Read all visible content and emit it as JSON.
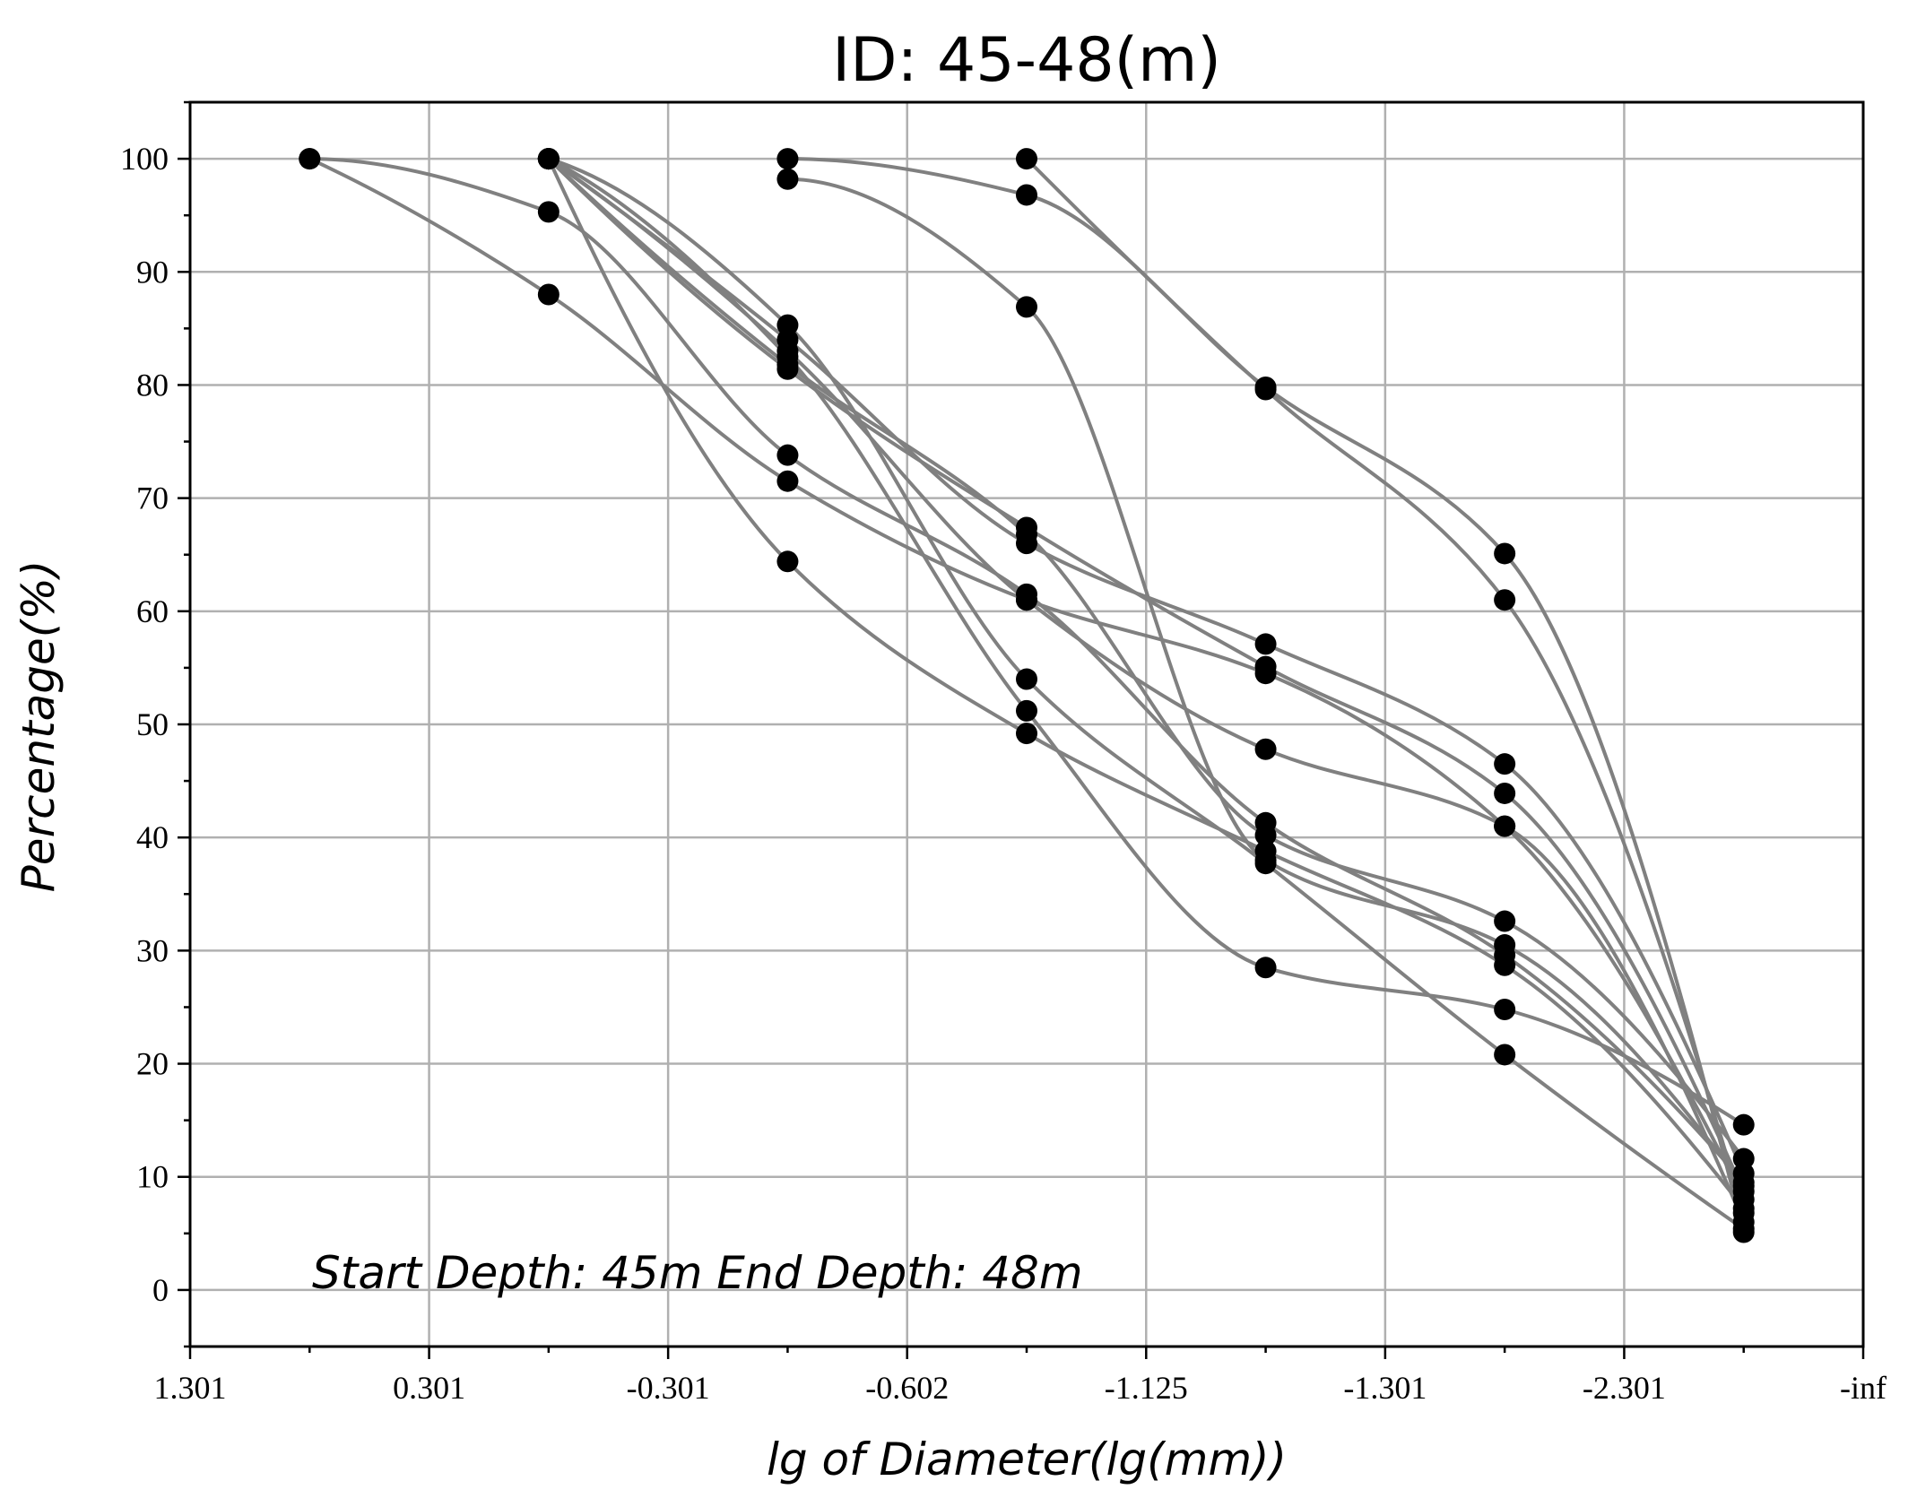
{
  "chart_data": {
    "type": "line",
    "title": "ID: 45-48(m)",
    "xlabel": "lg of Diameter(lg(mm))",
    "ylabel": "Percentage(%)",
    "annotation": "Start Depth: 45m End Depth: 48m",
    "x_tick_labels": [
      "1.301",
      "0.301",
      "-0.301",
      "-0.602",
      "-1.125",
      "-1.301",
      "-2.301",
      "-inf"
    ],
    "x_point_positions": [
      0.5,
      1.5,
      2.5,
      3.5,
      4.5,
      5.5,
      6.5
    ],
    "y_ticks": [
      0,
      10,
      20,
      30,
      40,
      50,
      60,
      70,
      80,
      90,
      100
    ],
    "xlim": [
      0,
      7
    ],
    "ylim": [
      -5,
      105
    ],
    "grid": true,
    "line_color": "#808080",
    "marker_color": "#000000",
    "series": [
      {
        "x": [
          0.5,
          1.5,
          2.5,
          3.5,
          4.5,
          5.5,
          6.5
        ],
        "values": [
          100,
          88,
          71.5,
          61,
          54.5,
          41,
          8
        ]
      },
      {
        "x": [
          0.5,
          1.5,
          2.5,
          3.5,
          4.5,
          5.5,
          6.5
        ],
        "values": [
          100,
          95.3,
          73.8,
          61.5,
          41.3,
          29.6,
          9.5
        ]
      },
      {
        "x": [
          1.5,
          2.5,
          3.5,
          4.5,
          5.5,
          6.5
        ],
        "values": [
          100,
          64.4,
          49.2,
          38.8,
          28.7,
          7.2
        ]
      },
      {
        "x": [
          1.5,
          2.5,
          3.5,
          4.5,
          5.5,
          6.5
        ],
        "values": [
          100,
          82.5,
          51.2,
          28.5,
          24.8,
          14.6
        ]
      },
      {
        "x": [
          1.5,
          2.5,
          3.5,
          4.5,
          5.5,
          6.5
        ],
        "values": [
          100,
          84,
          66,
          57.1,
          46.5,
          10.3
        ]
      },
      {
        "x": [
          1.5,
          2.5,
          3.5,
          4.5,
          5.5,
          6.5
        ],
        "values": [
          100,
          81.4,
          67.4,
          55.1,
          43.9,
          8.7
        ]
      },
      {
        "x": [
          1.5,
          2.5,
          3.5,
          4.5,
          5.5,
          6.5
        ],
        "values": [
          100,
          85.3,
          54,
          37.7,
          20.8,
          5.4
        ]
      },
      {
        "x": [
          1.5,
          2.5,
          3.5,
          4.5,
          5.5,
          6.5
        ],
        "values": [
          100,
          83,
          61,
          47.8,
          41,
          6
        ]
      },
      {
        "x": [
          1.5,
          2.5,
          3.5,
          4.5,
          5.5,
          6.5
        ],
        "values": [
          100,
          81.8,
          66.8,
          40.2,
          32.6,
          11.6
        ]
      },
      {
        "x": [
          2.5,
          3.5,
          4.5,
          5.5,
          6.5
        ],
        "values": [
          100,
          96.8,
          79.8,
          65.1,
          5.1
        ]
      },
      {
        "x": [
          2.5,
          3.5,
          4.5,
          5.5,
          6.5
        ],
        "values": [
          98.2,
          86.9,
          38,
          30.5,
          9.2
        ]
      },
      {
        "x": [
          3.5,
          4.5,
          5.5,
          6.5
        ],
        "values": [
          100,
          79.6,
          61,
          6.8
        ]
      }
    ]
  }
}
